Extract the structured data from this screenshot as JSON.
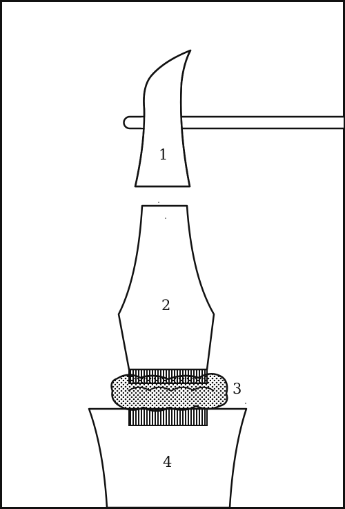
{
  "diagram": {
    "line_color": "#111111",
    "background": "#ffffff",
    "dot_color": "#111111",
    "parts": [
      {
        "id": "1",
        "label": "1",
        "depicts": "hammer-head"
      },
      {
        "id": "2",
        "label": "2",
        "depicts": "chisel-body"
      },
      {
        "id": "3",
        "label": "3",
        "depicts": "cushion-ring"
      },
      {
        "id": "4",
        "label": "4",
        "depicts": "base-block"
      }
    ]
  }
}
